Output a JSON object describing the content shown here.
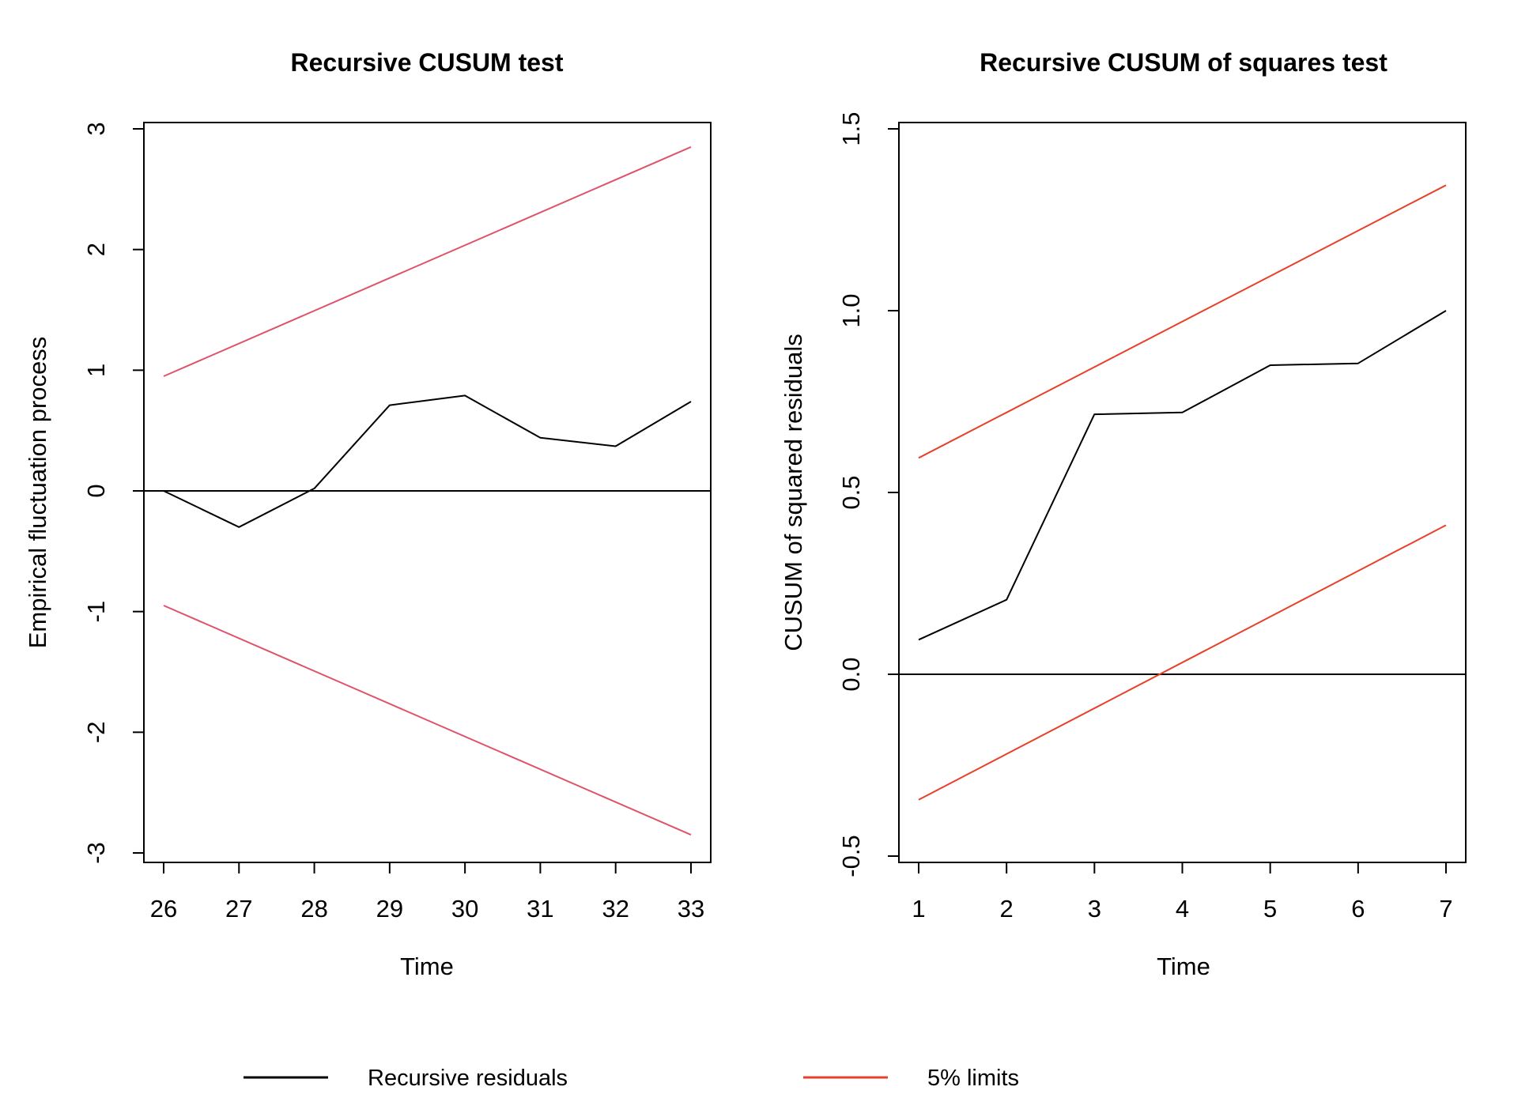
{
  "chart_data": [
    {
      "type": "line",
      "title": "Recursive CUSUM test",
      "xlabel": "Time",
      "ylabel": "Empirical fluctuation process",
      "xlim": [
        26,
        33
      ],
      "ylim": [
        -3,
        3
      ],
      "x_ticks": [
        26,
        27,
        28,
        29,
        30,
        31,
        32,
        33
      ],
      "y_ticks": [
        -3,
        -2,
        -1,
        0,
        1,
        2,
        3
      ],
      "y_tick_labels": [
        "-3",
        "-2",
        "-1",
        "0",
        "1",
        "2",
        "3"
      ],
      "grid": false,
      "reference_line": 0,
      "series": [
        {
          "name": "Recursive residuals",
          "color": "#000000",
          "x": [
            26,
            27,
            28,
            29,
            30,
            31,
            32,
            33
          ],
          "y": [
            0.0,
            -0.3,
            0.02,
            0.71,
            0.79,
            0.44,
            0.37,
            0.74
          ]
        },
        {
          "name": "5% limits (upper)",
          "color": "#df536b",
          "x": [
            26,
            33
          ],
          "y": [
            0.95,
            2.85
          ]
        },
        {
          "name": "5% limits (lower)",
          "color": "#df536b",
          "x": [
            26,
            33
          ],
          "y": [
            -0.95,
            -2.85
          ]
        }
      ]
    },
    {
      "type": "line",
      "title": "Recursive CUSUM of squares test",
      "xlabel": "Time",
      "ylabel": "CUSUM of squared residuals",
      "xlim": [
        1,
        7
      ],
      "ylim": [
        -0.5,
        1.5
      ],
      "x_ticks": [
        1,
        2,
        3,
        4,
        5,
        6,
        7
      ],
      "y_ticks": [
        -0.5,
        0.0,
        0.5,
        1.0,
        1.5
      ],
      "y_tick_labels": [
        "-0.5",
        "0.0",
        "0.5",
        "1.0",
        "1.5"
      ],
      "grid": false,
      "reference_line": 0,
      "series": [
        {
          "name": "Recursive residuals",
          "color": "#000000",
          "x": [
            1,
            2,
            3,
            4,
            5,
            6,
            7
          ],
          "y": [
            0.095,
            0.205,
            0.715,
            0.72,
            0.85,
            0.855,
            1.0
          ]
        },
        {
          "name": "5% limits (upper)",
          "color": "#e8402a",
          "x": [
            1,
            7
          ],
          "y": [
            0.595,
            1.345
          ]
        },
        {
          "name": "5% limits (lower)",
          "color": "#e8402a",
          "x": [
            1,
            7
          ],
          "y": [
            -0.345,
            0.41
          ]
        }
      ]
    }
  ],
  "legend": {
    "position": "bottom",
    "items": [
      {
        "label": "Recursive residuals",
        "color": "#000000"
      },
      {
        "label": "5% limits",
        "color": "#e8402a"
      }
    ]
  }
}
